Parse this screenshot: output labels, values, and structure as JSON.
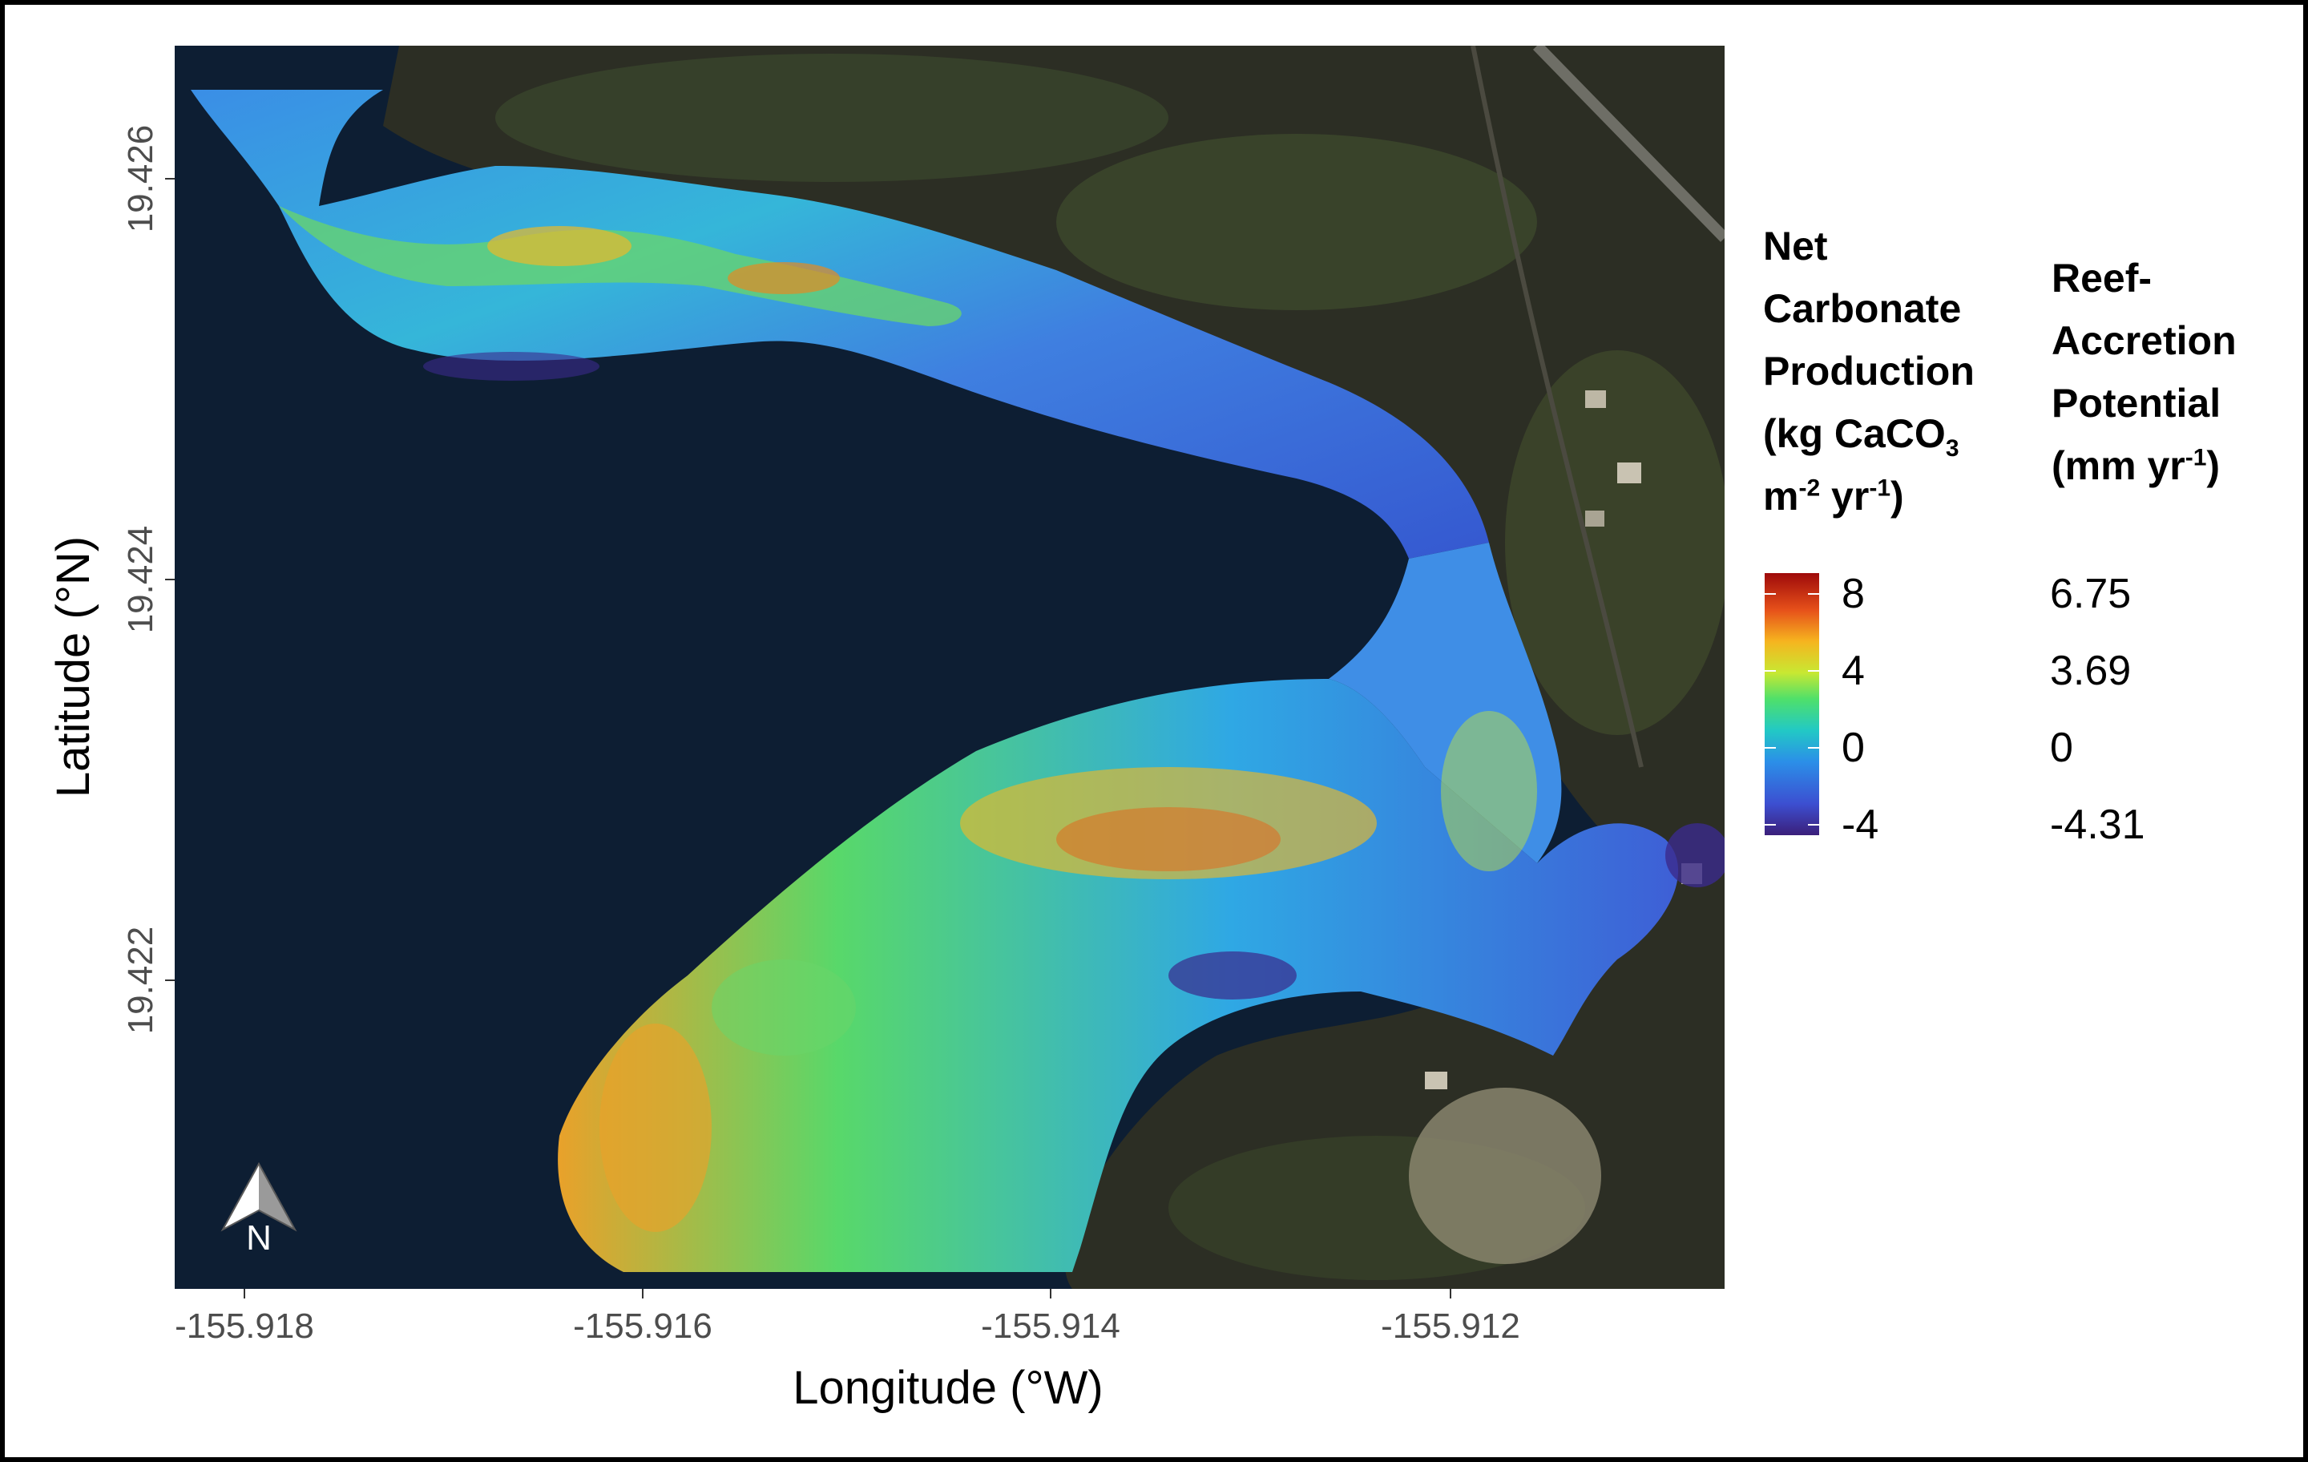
{
  "map": {
    "x_axis": {
      "title": "Longitude (°W)",
      "ticks": [
        "-155.918",
        "-155.916",
        "-155.914",
        "-155.912"
      ]
    },
    "y_axis": {
      "title": "Latitude (°N)",
      "ticks": [
        "19.426",
        "19.424",
        "19.422"
      ]
    },
    "north_arrow": {
      "label": "N"
    },
    "colors": {
      "ocean": "#0d1e33",
      "land": "#2c2e24",
      "vegetation": "#3c4528",
      "sand": "#b9b49c"
    }
  },
  "legend": {
    "ncp_title": {
      "line1": "Net",
      "line2": "Carbonate",
      "line3": "Production",
      "line4_prefix": "(kg CaCO",
      "line4_sub": "3",
      "line5_a": "m",
      "line5_sup1": "-2",
      "line5_b": " yr",
      "line5_sup2": "-1",
      "line5_c": ")"
    },
    "accretion_title": {
      "line1": "Reef-",
      "line2": "Accretion",
      "line3": "Potential",
      "line4_prefix": "(mm yr",
      "line4_sup": "-1",
      "line4_suffix": ")"
    },
    "ncp_breaks": [
      "8",
      "4",
      "0",
      "-4"
    ],
    "accretion_values": [
      "6.75",
      "3.69",
      "0",
      "-4.31"
    ],
    "colorscale": [
      "#3b1f7a",
      "#3c4fd1",
      "#2b8fe8",
      "#22c9c5",
      "#4fe06a",
      "#c8e832",
      "#f6b41f",
      "#e6501a",
      "#9e0a0a"
    ]
  }
}
